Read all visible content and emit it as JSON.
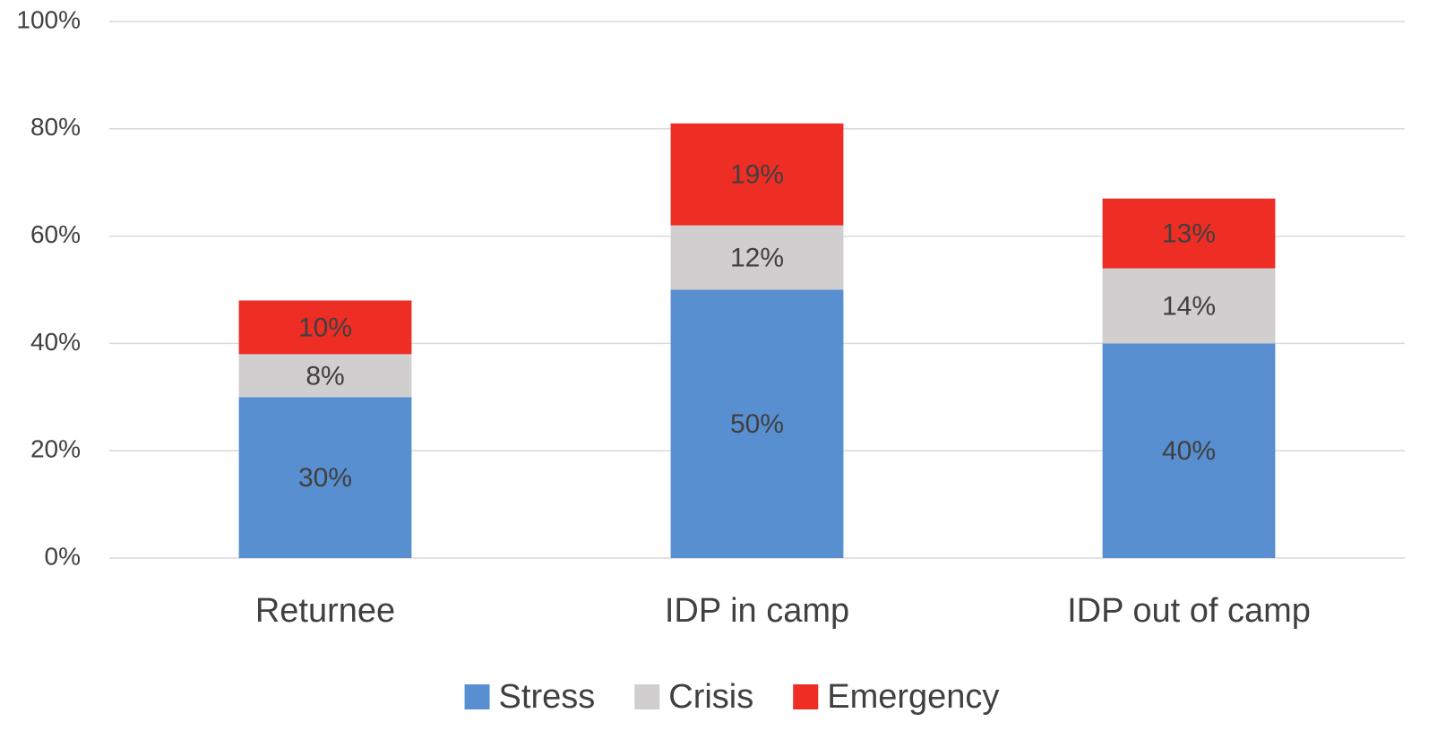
{
  "chart_data": {
    "type": "stacked_bar",
    "categories": [
      "Returnee",
      "IDP in camp",
      "IDP out of camp"
    ],
    "series": [
      {
        "name": "Stress",
        "color": "#588fd1",
        "values": [
          30,
          50,
          40
        ],
        "value_labels": [
          "30%",
          "50%",
          "40%"
        ]
      },
      {
        "name": "Crisis",
        "color": "#d0cece",
        "values": [
          8,
          12,
          14
        ],
        "value_labels": [
          "8%",
          "12%",
          "14%"
        ]
      },
      {
        "name": "Emergency",
        "color": "#ee2d24",
        "values": [
          10,
          19,
          13
        ],
        "value_labels": [
          "10%",
          "19%",
          "13%"
        ]
      }
    ],
    "ylim": [
      0,
      100
    ],
    "yticks": [
      {
        "value": 0,
        "label": "0%"
      },
      {
        "value": 20,
        "label": "20%"
      },
      {
        "value": 40,
        "label": "40%"
      },
      {
        "value": 60,
        "label": "60%"
      },
      {
        "value": 80,
        "label": "80%"
      },
      {
        "value": 100,
        "label": "100%"
      }
    ],
    "grid": true,
    "legend": "bottom"
  }
}
